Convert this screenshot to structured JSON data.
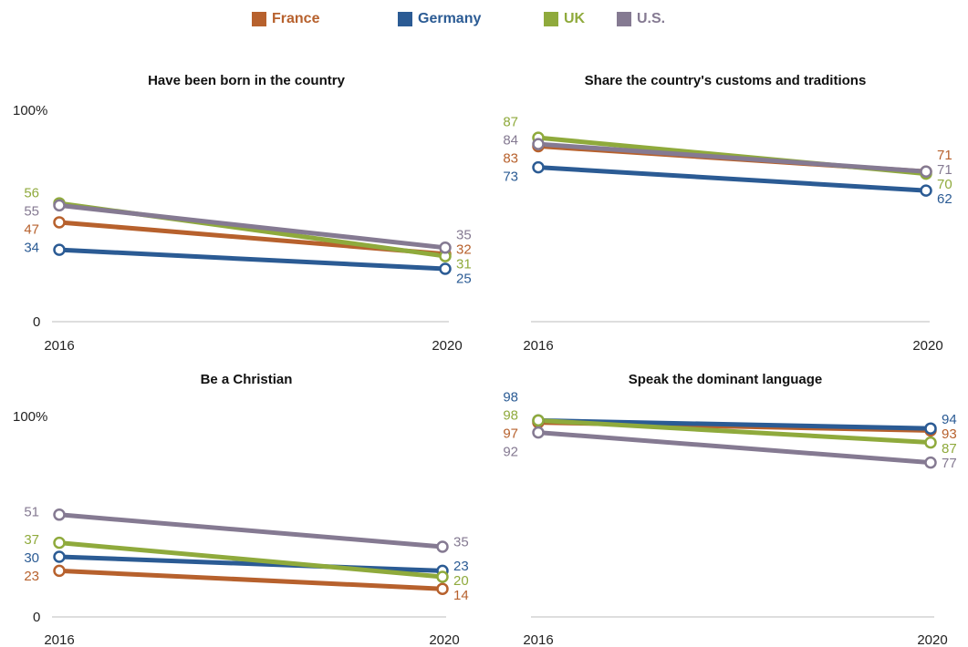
{
  "legend": {
    "items": [
      {
        "label": "France",
        "color": "#b7612d"
      },
      {
        "label": "Germany",
        "color": "#2b5b94"
      },
      {
        "label": "UK",
        "color": "#8faa3c"
      },
      {
        "label": "U.S.",
        "color": "#857a92"
      }
    ]
  },
  "chart_data": [
    {
      "type": "line",
      "title": "Have been born in the country",
      "x": [
        "2016",
        "2020"
      ],
      "ylim": [
        0,
        100
      ],
      "yticks": [
        "100%",
        "0"
      ],
      "series": [
        {
          "name": "France",
          "values": [
            47,
            32
          ]
        },
        {
          "name": "Germany",
          "values": [
            34,
            25
          ]
        },
        {
          "name": "UK",
          "values": [
            56,
            31
          ]
        },
        {
          "name": "U.S.",
          "values": [
            55,
            35
          ]
        }
      ]
    },
    {
      "type": "line",
      "title": "Share the country's customs and traditions",
      "x": [
        "2016",
        "2020"
      ],
      "ylim": [
        0,
        100
      ],
      "yticks": [],
      "series": [
        {
          "name": "France",
          "values": [
            83,
            71
          ]
        },
        {
          "name": "Germany",
          "values": [
            73,
            62
          ]
        },
        {
          "name": "UK",
          "values": [
            87,
            70
          ]
        },
        {
          "name": "U.S.",
          "values": [
            84,
            71
          ]
        }
      ]
    },
    {
      "type": "line",
      "title": "Be a Christian",
      "x": [
        "2016",
        "2020"
      ],
      "ylim": [
        0,
        100
      ],
      "yticks": [
        "100%",
        "0"
      ],
      "series": [
        {
          "name": "France",
          "values": [
            23,
            14
          ]
        },
        {
          "name": "Germany",
          "values": [
            30,
            23
          ]
        },
        {
          "name": "UK",
          "values": [
            37,
            20
          ]
        },
        {
          "name": "U.S.",
          "values": [
            51,
            35
          ]
        }
      ]
    },
    {
      "type": "line",
      "title": "Speak the dominant language",
      "x": [
        "2016",
        "2020"
      ],
      "ylim": [
        0,
        100
      ],
      "yticks": [],
      "series": [
        {
          "name": "France",
          "values": [
            97,
            93
          ]
        },
        {
          "name": "Germany",
          "values": [
            98,
            94
          ]
        },
        {
          "name": "UK",
          "values": [
            98,
            87
          ]
        },
        {
          "name": "U.S.",
          "values": [
            92,
            77
          ]
        }
      ]
    }
  ]
}
